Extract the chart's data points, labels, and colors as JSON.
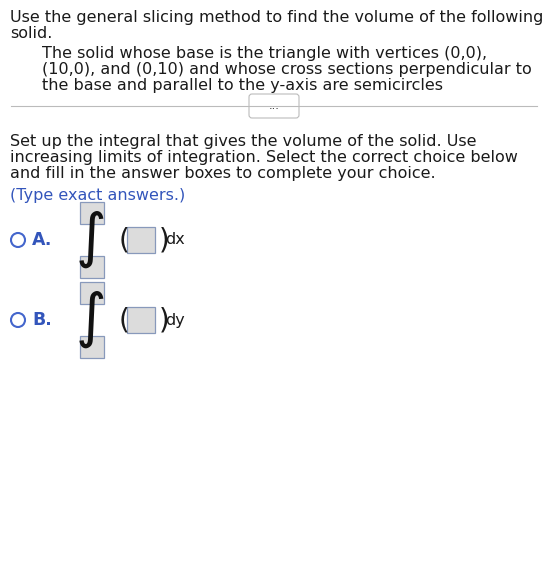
{
  "bg_color": "#ffffff",
  "title_line1": "Use the general slicing method to find the volume of the following",
  "title_line2": "solid.",
  "body_line1": "The solid whose base is the triangle with vertices (0,0),",
  "body_line2": "(10,0), and (0,10) and whose cross sections perpendicular to",
  "body_line3": "the base and parallel to the y-axis are semicircles",
  "divider_text": "...",
  "q_line1": "Set up the integral that gives the volume of the solid. Use",
  "q_line2": "increasing limits of integration. Select the correct choice below",
  "q_line3": "and fill in the answer boxes to complete your choice.",
  "type_note": "(Type exact answers.)",
  "option_A_label": "A.",
  "option_A_suffix": "dx",
  "option_B_label": "B.",
  "option_B_suffix": "dy",
  "text_color": "#1a1a1a",
  "blue_color": "#3355bb",
  "box_fill": "#dcdcdc",
  "box_edge": "#8899bb",
  "circle_color": "#4466cc",
  "integral_color": "#111111",
  "font_size_main": 11.5,
  "font_size_label": 12.5,
  "font_size_type": 11.5
}
